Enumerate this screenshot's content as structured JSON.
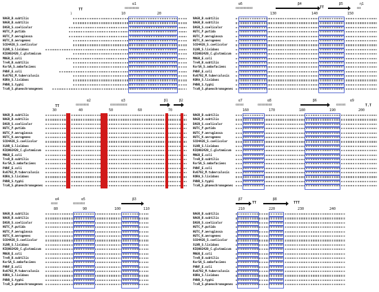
{
  "species": [
    "NAGR_B.subtilis",
    "NAGR_B.subtilis",
    "DASR_S.coelicolor",
    "HUTC_P.putida",
    "HUTC_P.aeruginosa",
    "HUTC_K.aerogenes",
    "SCO4428_S.coelicolor",
    "XLNR_S.lividans",
    "KIQ002420_C.glutamicum",
    "MNGR_E.coli",
    "TreR_B.subtilis",
    "KorSA_S.ambofaciens",
    "PHNF_E.coli",
    "Rv0792_M.tuberculosis",
    "KORA_S.lividans",
    "PHNR_S.typhi",
    "TraR_S.phaeochromogenes"
  ],
  "panels": [
    {
      "id": "p1",
      "ss": [
        {
          "label": "α1"
        }
      ],
      "tt": [
        "TT"
      ],
      "numbers": [
        "10",
        "20"
      ],
      "ticks": [
        "1"
      ]
    },
    {
      "id": "p2",
      "ss": [
        {
          "label": "α6"
        },
        {
          "label": "β4"
        },
        {
          "label": "β5"
        },
        {
          "label": "η1"
        }
      ],
      "tt": [
        "TT"
      ],
      "numbers": [
        "130",
        "140",
        "150"
      ],
      "ticks": []
    },
    {
      "id": "p3",
      "ss": [
        {
          "label": "α2"
        },
        {
          "label": "α3"
        },
        {
          "label": "β1"
        },
        {
          "label": "β2"
        }
      ],
      "tt": [
        "TT"
      ],
      "numbers": [
        "30",
        "40",
        "50",
        "60",
        "70"
      ],
      "ticks": []
    },
    {
      "id": "p4",
      "ss": [
        {
          "label": "α7"
        },
        {
          "label": "α8"
        },
        {
          "label": "β6"
        },
        {
          "label": "α9"
        }
      ],
      "tt": [
        "T.T"
      ],
      "numbers": [
        "160",
        "170",
        "180",
        "190",
        "200"
      ],
      "ticks": []
    },
    {
      "id": "p5",
      "ss": [
        {
          "label": "α4"
        },
        {
          "label": "α5"
        },
        {
          "label": "β3"
        }
      ],
      "tt": [],
      "numbers": [
        "80",
        "90",
        "100",
        "110"
      ],
      "ticks": []
    },
    {
      "id": "p6",
      "ss": [
        {
          "label": "β7"
        },
        {
          "label": "β8"
        }
      ],
      "tt": [
        "TT",
        "TTT"
      ],
      "numbers": [
        "210",
        "220",
        "230",
        "240"
      ],
      "ticks": []
    }
  ]
}
